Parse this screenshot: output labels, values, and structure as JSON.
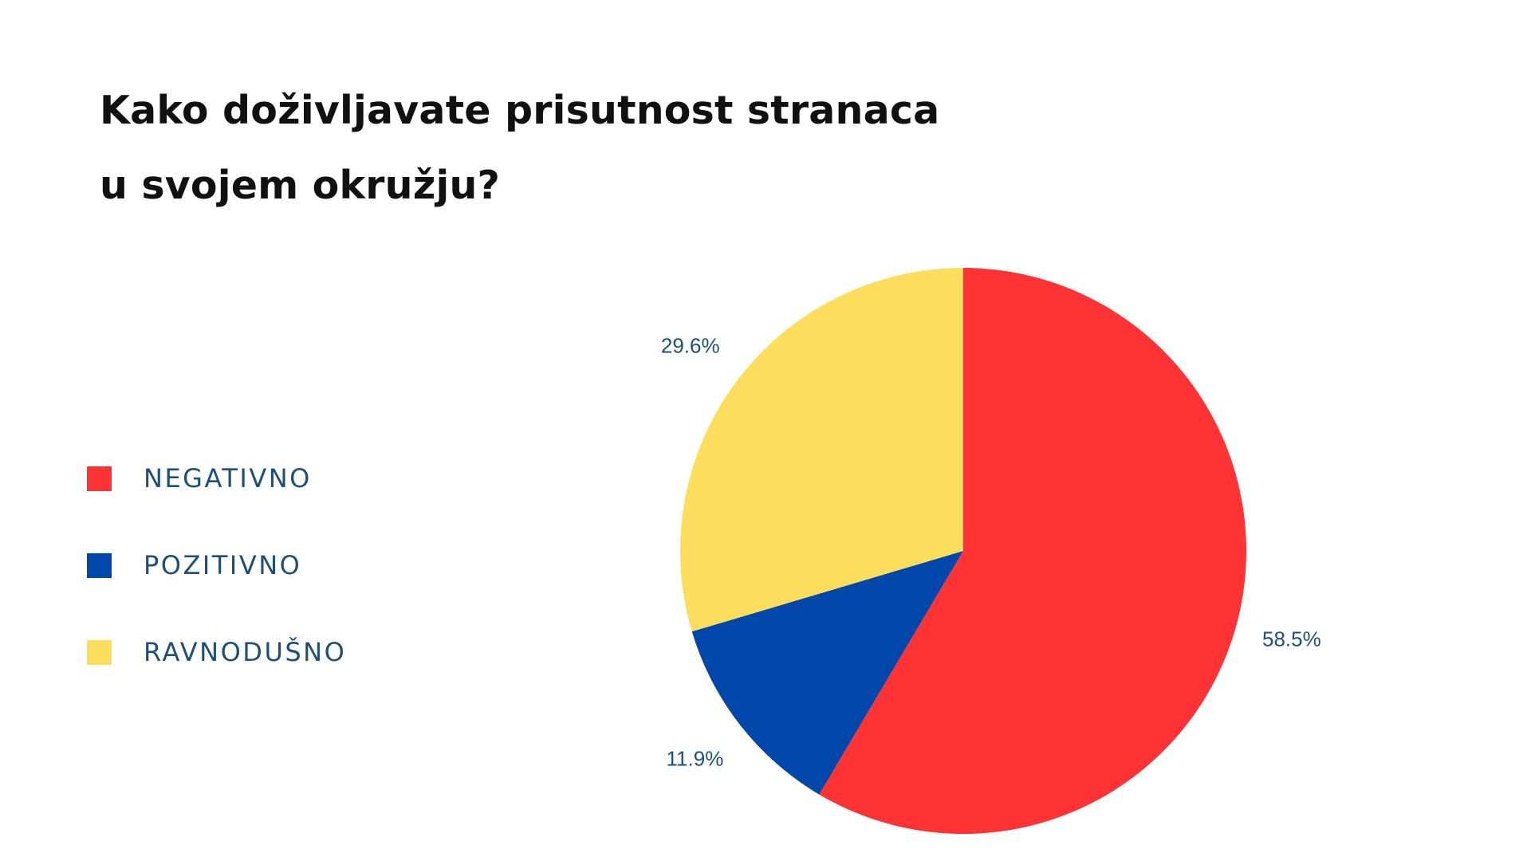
{
  "chart_data": {
    "type": "pie",
    "title": "Kako doživljavate prisutnost stranaca u svojem okružju?",
    "title_lines": [
      "Kako doživljavate prisutnost stranaca",
      "u svojem okružju?"
    ],
    "legend_placement": "left",
    "slices": [
      {
        "name": "NEGATIVNO",
        "value": 58.5,
        "label": "58.5%",
        "color": "#ff3333"
      },
      {
        "name": "POZITIVNO",
        "value": 11.9,
        "label": "11.9%",
        "color": "#0047ab"
      },
      {
        "name": "RAVNODUŠNO",
        "value": 29.6,
        "label": "29.6%",
        "color": "#fdde5c"
      }
    ]
  }
}
